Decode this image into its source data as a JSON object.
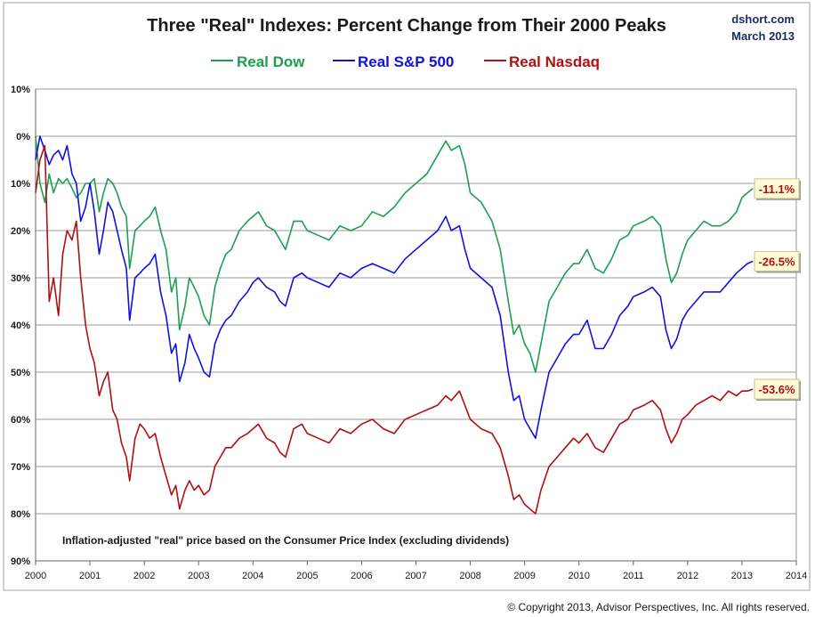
{
  "chart_data": {
    "type": "line",
    "title": "Three \"Real\" Indexes: Percent Change from Their 2000 Peaks",
    "source": "dshort.com",
    "date_label": "March 2013",
    "annotation": "Inflation-adjusted \"real\" price based on the Consumer Price Index (excluding dividends)",
    "copyright": "© Copyright 2013, Advisor Perspectives, Inc. All rights reserved.",
    "xlim": [
      2000,
      2014
    ],
    "ylim": [
      10,
      -90
    ],
    "x_ticks": [
      "2000",
      "2001",
      "2002",
      "2003",
      "2004",
      "2005",
      "2006",
      "2007",
      "2008",
      "2009",
      "2010",
      "2011",
      "2012",
      "2013",
      "2014"
    ],
    "y_ticks": [
      {
        "label": "10%",
        "value": 10
      },
      {
        "label": "0%",
        "value": 0
      },
      {
        "label": "10%",
        "value": -10
      },
      {
        "label": "20%",
        "value": -20
      },
      {
        "label": "30%",
        "value": -30
      },
      {
        "label": "40%",
        "value": -40
      },
      {
        "label": "50%",
        "value": -50
      },
      {
        "label": "60%",
        "value": -60
      },
      {
        "label": "70%",
        "value": -70
      },
      {
        "label": "80%",
        "value": -80
      },
      {
        "label": "90%",
        "value": -90
      }
    ],
    "grid": true,
    "legend_position": "top-center",
    "series": [
      {
        "name": "Real Dow",
        "color": "#1e9e4f",
        "end_label": "-11.1%",
        "x": [
          2000.0,
          2000.08,
          2000.17,
          2000.25,
          2000.33,
          2000.42,
          2000.5,
          2000.58,
          2000.67,
          2000.75,
          2000.83,
          2000.92,
          2001.0,
          2001.08,
          2001.17,
          2001.25,
          2001.33,
          2001.42,
          2001.5,
          2001.58,
          2001.67,
          2001.73,
          2001.83,
          2001.92,
          2002.0,
          2002.1,
          2002.2,
          2002.3,
          2002.4,
          2002.5,
          2002.58,
          2002.65,
          2002.75,
          2002.83,
          2002.92,
          2003.0,
          2003.1,
          2003.2,
          2003.3,
          2003.4,
          2003.5,
          2003.6,
          2003.75,
          2003.9,
          2004.0,
          2004.1,
          2004.25,
          2004.4,
          2004.5,
          2004.6,
          2004.75,
          2004.9,
          2005.0,
          2005.2,
          2005.4,
          2005.6,
          2005.8,
          2006.0,
          2006.2,
          2006.4,
          2006.6,
          2006.8,
          2007.0,
          2007.2,
          2007.4,
          2007.55,
          2007.65,
          2007.8,
          2007.9,
          2008.0,
          2008.2,
          2008.4,
          2008.55,
          2008.7,
          2008.8,
          2008.9,
          2009.0,
          2009.1,
          2009.2,
          2009.3,
          2009.45,
          2009.6,
          2009.75,
          2009.9,
          2010.0,
          2010.15,
          2010.3,
          2010.45,
          2010.6,
          2010.75,
          2010.9,
          2011.0,
          2011.2,
          2011.35,
          2011.5,
          2011.6,
          2011.7,
          2011.8,
          2011.9,
          2012.0,
          2012.15,
          2012.3,
          2012.45,
          2012.6,
          2012.75,
          2012.9,
          2013.0,
          2013.1,
          2013.2
        ],
        "y": [
          0,
          -10,
          -14,
          -8,
          -12,
          -9,
          -10,
          -9,
          -11,
          -13,
          -12,
          -10,
          -10,
          -9,
          -16,
          -12,
          -9,
          -10,
          -12,
          -15,
          -17,
          -28,
          -20,
          -19,
          -18,
          -17,
          -15,
          -20,
          -24,
          -33,
          -30,
          -41,
          -36,
          -30,
          -32,
          -34,
          -38,
          -40,
          -32,
          -28,
          -25,
          -24,
          -20,
          -18,
          -17,
          -16,
          -19,
          -20,
          -22,
          -24,
          -18,
          -18,
          -20,
          -21,
          -22,
          -19,
          -20,
          -19,
          -16,
          -17,
          -15,
          -12,
          -10,
          -8,
          -4,
          -1,
          -3,
          -2,
          -6,
          -12,
          -14,
          -18,
          -24,
          -35,
          -42,
          -40,
          -44,
          -46,
          -50,
          -44,
          -35,
          -32,
          -29,
          -27,
          -27,
          -24,
          -28,
          -29,
          -26,
          -22,
          -21,
          -19,
          -18,
          -17,
          -19,
          -26,
          -31,
          -29,
          -25,
          -22,
          -20,
          -18,
          -19,
          -19,
          -18,
          -16,
          -13,
          -12,
          -11.1
        ]
      },
      {
        "name": "Real S&P 500",
        "color": "#1010e0",
        "end_label": "-26.5%",
        "x": [
          2000.0,
          2000.08,
          2000.17,
          2000.25,
          2000.33,
          2000.42,
          2000.5,
          2000.58,
          2000.67,
          2000.75,
          2000.83,
          2000.92,
          2001.0,
          2001.08,
          2001.17,
          2001.25,
          2001.33,
          2001.42,
          2001.5,
          2001.58,
          2001.67,
          2001.73,
          2001.83,
          2001.92,
          2002.0,
          2002.1,
          2002.2,
          2002.3,
          2002.4,
          2002.5,
          2002.58,
          2002.65,
          2002.75,
          2002.83,
          2002.92,
          2003.0,
          2003.1,
          2003.2,
          2003.3,
          2003.4,
          2003.5,
          2003.6,
          2003.75,
          2003.9,
          2004.0,
          2004.1,
          2004.25,
          2004.4,
          2004.5,
          2004.6,
          2004.75,
          2004.9,
          2005.0,
          2005.2,
          2005.4,
          2005.6,
          2005.8,
          2006.0,
          2006.2,
          2006.4,
          2006.6,
          2006.8,
          2007.0,
          2007.2,
          2007.4,
          2007.55,
          2007.65,
          2007.8,
          2007.9,
          2008.0,
          2008.2,
          2008.4,
          2008.55,
          2008.7,
          2008.8,
          2008.9,
          2009.0,
          2009.1,
          2009.2,
          2009.3,
          2009.45,
          2009.6,
          2009.75,
          2009.9,
          2010.0,
          2010.15,
          2010.3,
          2010.45,
          2010.6,
          2010.75,
          2010.9,
          2011.0,
          2011.2,
          2011.35,
          2011.5,
          2011.6,
          2011.7,
          2011.8,
          2011.9,
          2012.0,
          2012.15,
          2012.3,
          2012.45,
          2012.6,
          2012.75,
          2012.9,
          2013.0,
          2013.1,
          2013.2
        ],
        "y": [
          -5,
          0,
          -3,
          -6,
          -4,
          -3,
          -5,
          -2,
          -8,
          -10,
          -18,
          -15,
          -10,
          -16,
          -25,
          -20,
          -14,
          -16,
          -20,
          -24,
          -28,
          -39,
          -30,
          -29,
          -28,
          -27,
          -25,
          -33,
          -38,
          -46,
          -44,
          -52,
          -48,
          -42,
          -45,
          -47,
          -50,
          -51,
          -44,
          -41,
          -39,
          -38,
          -35,
          -33,
          -31,
          -30,
          -32,
          -33,
          -35,
          -36,
          -30,
          -29,
          -30,
          -31,
          -32,
          -29,
          -30,
          -28,
          -27,
          -28,
          -29,
          -26,
          -24,
          -22,
          -20,
          -17,
          -20,
          -19,
          -24,
          -28,
          -30,
          -32,
          -38,
          -50,
          -56,
          -55,
          -60,
          -62,
          -64,
          -58,
          -50,
          -47,
          -44,
          -42,
          -42,
          -39,
          -45,
          -45,
          -42,
          -38,
          -36,
          -34,
          -33,
          -32,
          -34,
          -41,
          -45,
          -43,
          -39,
          -37,
          -35,
          -33,
          -33,
          -33,
          -31,
          -29,
          -28,
          -27,
          -26.5
        ]
      },
      {
        "name": "Real Nasdaq",
        "color": "#b01010",
        "end_label": "-53.6%",
        "x": [
          2000.0,
          2000.08,
          2000.17,
          2000.25,
          2000.33,
          2000.42,
          2000.5,
          2000.58,
          2000.67,
          2000.75,
          2000.83,
          2000.92,
          2001.0,
          2001.08,
          2001.17,
          2001.25,
          2001.33,
          2001.42,
          2001.5,
          2001.58,
          2001.67,
          2001.73,
          2001.83,
          2001.92,
          2002.0,
          2002.1,
          2002.2,
          2002.3,
          2002.4,
          2002.5,
          2002.58,
          2002.65,
          2002.75,
          2002.83,
          2002.92,
          2003.0,
          2003.1,
          2003.2,
          2003.3,
          2003.4,
          2003.5,
          2003.6,
          2003.75,
          2003.9,
          2004.0,
          2004.1,
          2004.25,
          2004.4,
          2004.5,
          2004.6,
          2004.75,
          2004.9,
          2005.0,
          2005.2,
          2005.4,
          2005.6,
          2005.8,
          2006.0,
          2006.2,
          2006.4,
          2006.6,
          2006.8,
          2007.0,
          2007.2,
          2007.4,
          2007.55,
          2007.65,
          2007.8,
          2007.9,
          2008.0,
          2008.2,
          2008.4,
          2008.55,
          2008.7,
          2008.8,
          2008.9,
          2009.0,
          2009.1,
          2009.2,
          2009.3,
          2009.45,
          2009.6,
          2009.75,
          2009.9,
          2010.0,
          2010.15,
          2010.3,
          2010.45,
          2010.6,
          2010.75,
          2010.9,
          2011.0,
          2011.2,
          2011.35,
          2011.5,
          2011.6,
          2011.7,
          2011.8,
          2011.9,
          2012.0,
          2012.15,
          2012.3,
          2012.45,
          2012.6,
          2012.75,
          2012.9,
          2013.0,
          2013.1,
          2013.2
        ],
        "y": [
          -12,
          -5,
          -2,
          -35,
          -30,
          -38,
          -25,
          -20,
          -22,
          -18,
          -30,
          -40,
          -45,
          -48,
          -55,
          -52,
          -50,
          -58,
          -60,
          -65,
          -68,
          -73,
          -64,
          -61,
          -62,
          -64,
          -63,
          -68,
          -72,
          -76,
          -74,
          -79,
          -75,
          -73,
          -75,
          -74,
          -76,
          -75,
          -70,
          -68,
          -66,
          -66,
          -64,
          -63,
          -62,
          -61,
          -64,
          -65,
          -67,
          -68,
          -62,
          -61,
          -63,
          -64,
          -65,
          -62,
          -63,
          -61,
          -60,
          -62,
          -63,
          -60,
          -59,
          -58,
          -57,
          -55,
          -56,
          -54,
          -57,
          -60,
          -62,
          -63,
          -66,
          -72,
          -77,
          -76,
          -78,
          -79,
          -80,
          -75,
          -70,
          -68,
          -66,
          -64,
          -65,
          -63,
          -66,
          -67,
          -64,
          -61,
          -60,
          -58,
          -57,
          -56,
          -58,
          -62,
          -65,
          -63,
          -60,
          -59,
          -57,
          -56,
          -55,
          -56,
          -54,
          -55,
          -54,
          -54,
          -53.6
        ]
      }
    ]
  }
}
